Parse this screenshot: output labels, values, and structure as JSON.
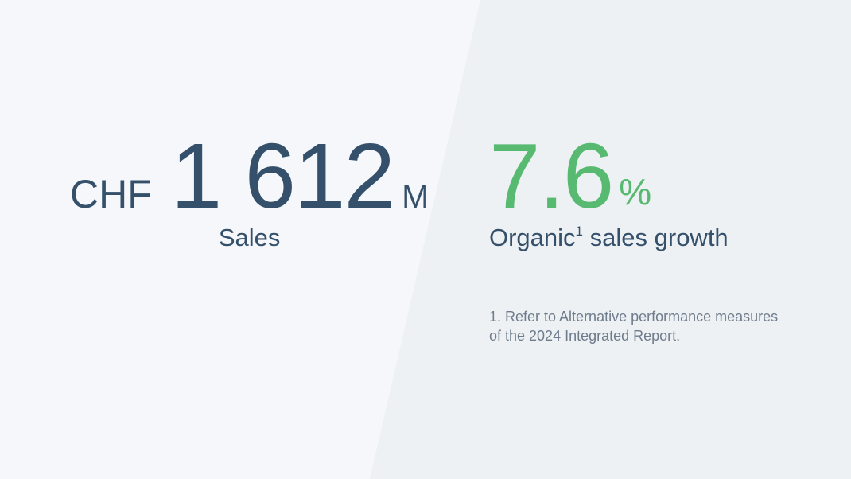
{
  "page": {
    "background_left_color": "#f5f7fa",
    "background_right_color": "#edf1f4",
    "accent_navy": "#35506a",
    "accent_green": "#58ba70",
    "footnote_gray": "#6f7c8c"
  },
  "kpi_sales": {
    "currency": "CHF",
    "value": "1 612",
    "unit": "M",
    "label": "Sales"
  },
  "kpi_growth": {
    "value": "7.6",
    "unit": "%",
    "label_prefix": "Organic",
    "label_superscript": "1",
    "label_suffix": " sales growth"
  },
  "footnote": {
    "line1": "1. Refer to Alternative performance measures",
    "line2": "of the 2024 Integrated Report."
  }
}
